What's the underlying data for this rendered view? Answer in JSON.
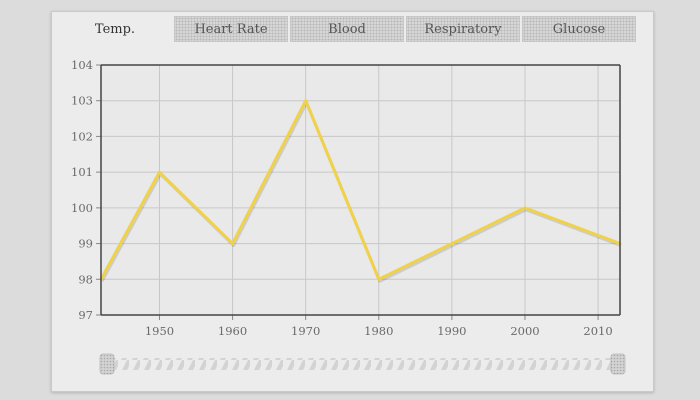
{
  "tabs": [
    {
      "label": "Temp.",
      "active": true
    },
    {
      "label": "Heart Rate",
      "active": false
    },
    {
      "label": "Blood",
      "active": false
    },
    {
      "label": "Respiratory",
      "active": false
    },
    {
      "label": "Glucose",
      "active": false
    }
  ],
  "colors": {
    "line": "#f0d24a",
    "axis": "#444444",
    "grid": "#c8c8c8",
    "page_background": "#dcdcdc",
    "panel_background": "#ececec",
    "slider_stripe": "#d3d3d3"
  },
  "chart_data": {
    "type": "line",
    "title": "",
    "xlabel": "",
    "ylabel": "",
    "xlim": [
      1942,
      2013
    ],
    "ylim": [
      97,
      104
    ],
    "x_ticks": [
      1950,
      1960,
      1970,
      1980,
      1990,
      2000,
      2010
    ],
    "y_ticks": [
      97,
      98,
      99,
      100,
      101,
      102,
      103,
      104
    ],
    "grid": true,
    "series": [
      {
        "x": [
          1942,
          1950,
          1960,
          1970,
          1980,
          1990,
          2000,
          2013
        ],
        "y": [
          98,
          101,
          99,
          103,
          98,
          99,
          100,
          99
        ]
      }
    ]
  },
  "range_slider": {
    "start": 0.0,
    "end": 1.0
  }
}
